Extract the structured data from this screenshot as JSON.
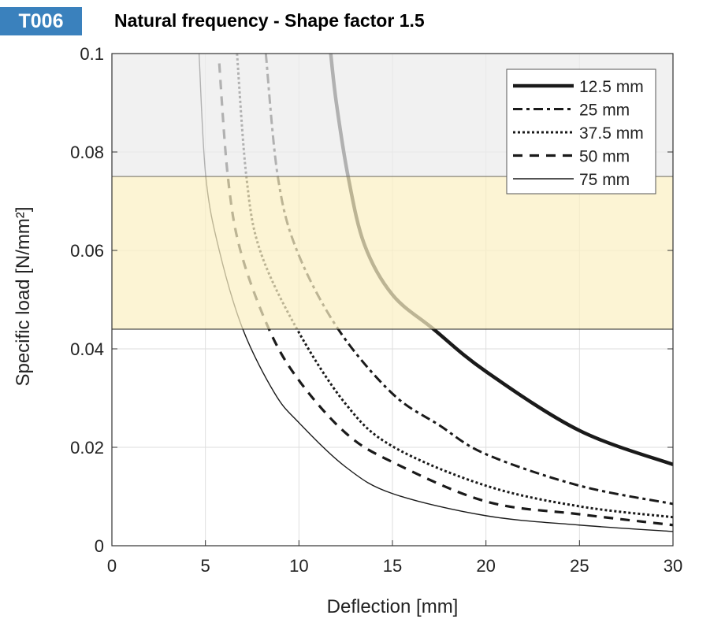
{
  "badge": "T006",
  "chart_data": {
    "type": "line",
    "title": "Natural frequency - Shape factor 1.5",
    "xlabel": "Deflection  [mm]",
    "ylabel": "Specific load [N/mm²]",
    "xlim": [
      0,
      30
    ],
    "ylim": [
      0,
      0.1
    ],
    "xticks": [
      0,
      5,
      10,
      15,
      20,
      25,
      30
    ],
    "xtick_labels": [
      "0",
      "5",
      "10",
      "15",
      "20",
      "25",
      "30"
    ],
    "yticks": [
      0,
      0.02,
      0.04,
      0.06,
      0.08,
      0.1
    ],
    "ytick_labels": [
      "0",
      "0.02",
      "0.04",
      "0.06",
      "0.08",
      "0.1"
    ],
    "grid": true,
    "legend_position": "top-right",
    "bands": [
      {
        "y_range": [
          0.075,
          0.1
        ],
        "color": "#ececec"
      },
      {
        "y_range": [
          0.044,
          0.075
        ],
        "color": "#fbf0c4"
      }
    ],
    "series": [
      {
        "name": "12.5 mm",
        "style": "solid-thick",
        "x": [
          11.7,
          12.0,
          12.63,
          13.5,
          15,
          17.2,
          20,
          25,
          30
        ],
        "y": [
          0.1,
          0.09,
          0.075,
          0.0612,
          0.051,
          0.044,
          0.0354,
          0.0234,
          0.0165
        ]
      },
      {
        "name": "25 mm",
        "style": "dashdot",
        "x": [
          8.23,
          8.87,
          9.89,
          12.1,
          15,
          17.5,
          20,
          25,
          30
        ],
        "y": [
          0.1,
          0.075,
          0.06,
          0.044,
          0.0309,
          0.0245,
          0.0186,
          0.0122,
          0.0085
        ]
      },
      {
        "name": "37.5 mm",
        "style": "dotted",
        "x": [
          6.69,
          7.19,
          7.92,
          9.9,
          12.5,
          15,
          20,
          25,
          30
        ],
        "y": [
          0.1,
          0.075,
          0.06,
          0.044,
          0.0288,
          0.0202,
          0.0122,
          0.008,
          0.0058
        ]
      },
      {
        "name": "50 mm",
        "style": "dashed",
        "x": [
          5.74,
          6.2,
          6.87,
          8.4,
          10,
          12.5,
          15,
          20,
          25,
          30
        ],
        "y": [
          0.098,
          0.075,
          0.06,
          0.044,
          0.0336,
          0.0229,
          0.017,
          0.009,
          0.0064,
          0.0042
        ]
      },
      {
        "name": "75 mm",
        "style": "solid-thin",
        "x": [
          4.66,
          5.02,
          5.74,
          7.0,
          8.7,
          10,
          12.5,
          15,
          20,
          25,
          30
        ],
        "y": [
          0.1,
          0.075,
          0.06,
          0.044,
          0.031,
          0.025,
          0.016,
          0.0106,
          0.0061,
          0.0042,
          0.0029
        ]
      }
    ]
  }
}
